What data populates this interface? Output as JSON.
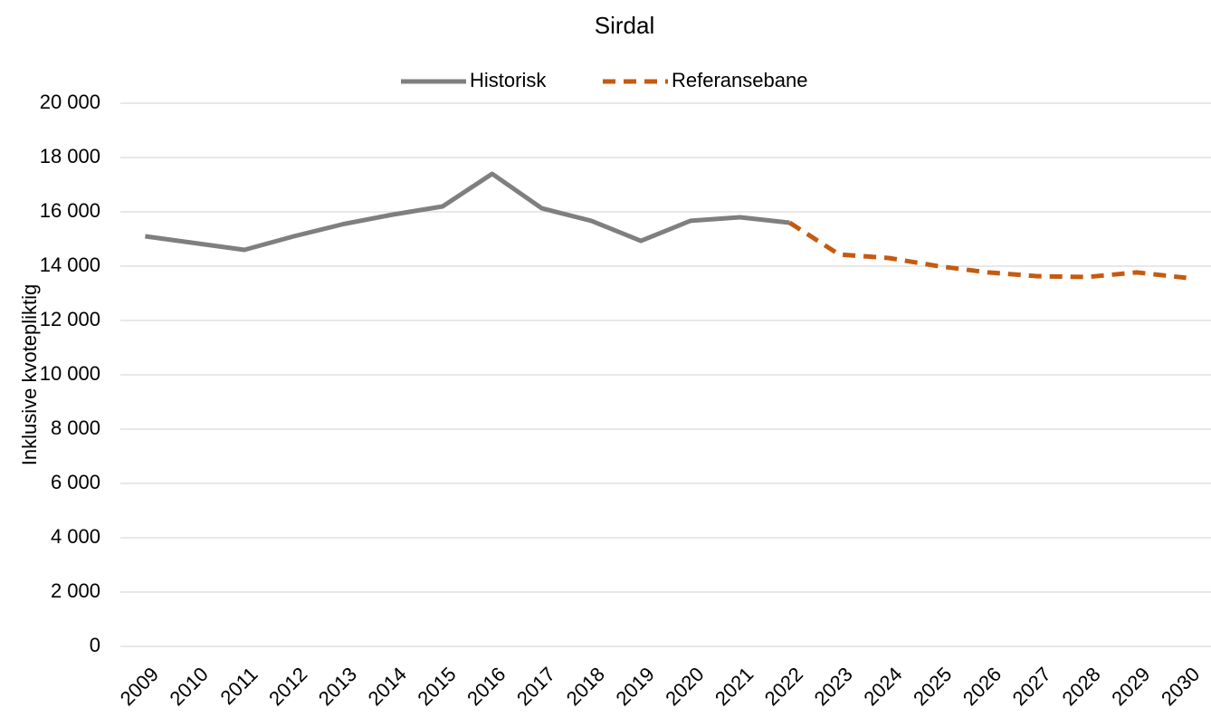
{
  "chart_data": {
    "type": "line",
    "title": "Sirdal",
    "y_label": "Inklusive kvotepliktig",
    "categories": [
      "2009",
      "2010",
      "2011",
      "2012",
      "2013",
      "2014",
      "2015",
      "2016",
      "2017",
      "2018",
      "2019",
      "2020",
      "2021",
      "2022",
      "2023",
      "2024",
      "2025",
      "2026",
      "2027",
      "2028",
      "2029",
      "2030"
    ],
    "series": [
      {
        "name": "Historisk",
        "color": "#7f7f7f",
        "dashed": false,
        "values": [
          15100,
          14850,
          14600,
          15100,
          15550,
          15900,
          16200,
          17400,
          16130,
          15670,
          14930,
          15670,
          15800,
          15600,
          null,
          null,
          null,
          null,
          null,
          null,
          null,
          null
        ]
      },
      {
        "name": "Referansebane",
        "color": "#c55a11",
        "dashed": true,
        "values": [
          null,
          null,
          null,
          null,
          null,
          null,
          null,
          null,
          null,
          null,
          null,
          null,
          null,
          15600,
          14430,
          14300,
          14000,
          13770,
          13630,
          13600,
          13770,
          13570
        ]
      }
    ],
    "ylim": [
      0,
      20000
    ],
    "yticks": [
      0,
      {
        "value": 2000,
        "label": "2 000"
      },
      {
        "value": 4000,
        "label": "4 000"
      },
      {
        "value": 6000,
        "label": "6 000"
      },
      {
        "value": 8000,
        "label": "8 000"
      },
      {
        "value": 10000,
        "label": "10 000"
      },
      {
        "value": 12000,
        "label": "12 000"
      },
      {
        "value": 14000,
        "label": "14 000"
      },
      {
        "value": 16000,
        "label": "16 000"
      },
      {
        "value": 18000,
        "label": "18 000"
      },
      {
        "value": 20000,
        "label": "20 000"
      }
    ],
    "grid": true,
    "legend": "top"
  }
}
